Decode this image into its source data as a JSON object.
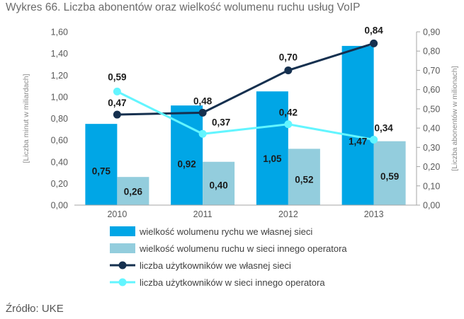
{
  "title": "Wykres 66. Liczba abonentów oraz wielkość wolumenu ruchu usług VoIP",
  "source": "Źródło: UKE",
  "chart_data": {
    "type": "bar+line",
    "categories": [
      "2010",
      "2011",
      "2012",
      "2013"
    ],
    "left_axis": {
      "label": "[Liczba minut w miliardach]",
      "ylim": [
        0,
        1.6
      ],
      "ticks": [
        "0,00",
        "0,20",
        "0,40",
        "0,60",
        "0,80",
        "1,00",
        "1,20",
        "1,40",
        "1,60"
      ]
    },
    "right_axis": {
      "label": "[Liczba abonentów w milionach]",
      "ylim": [
        0,
        0.9
      ],
      "ticks": [
        "0,00",
        "0,10",
        "0,20",
        "0,30",
        "0,40",
        "0,50",
        "0,60",
        "0,70",
        "0,80",
        "0,90"
      ]
    },
    "bar_series": [
      {
        "name": "wielkość wolumenu rychu we własnej sieci",
        "color": "#00A6E6",
        "values": [
          0.75,
          0.92,
          1.05,
          1.47
        ],
        "labels": [
          "0,75",
          "0,92",
          "1,05",
          "1,47"
        ]
      },
      {
        "name": "wielkość wolumenu ruchu w sieci innego operatora",
        "color": "#93CDDD",
        "values": [
          0.26,
          0.4,
          0.52,
          0.59
        ],
        "labels": [
          "0,26",
          "0,40",
          "0,52",
          "0,59"
        ]
      }
    ],
    "line_series": [
      {
        "name": "liczba użytkowników we własnej sieci",
        "color": "#15304F",
        "values": [
          0.47,
          0.48,
          0.7,
          0.84
        ],
        "labels": [
          "0,47",
          "0,48",
          "0,70",
          "0,84"
        ]
      },
      {
        "name": "liczba użytkowników w sieci innego operatora",
        "color": "#63F5FF",
        "values": [
          0.59,
          0.37,
          0.42,
          0.34
        ],
        "labels": [
          "0,59",
          "0,37",
          "0,42",
          "0,34"
        ]
      }
    ],
    "legend_position": "bottom"
  }
}
